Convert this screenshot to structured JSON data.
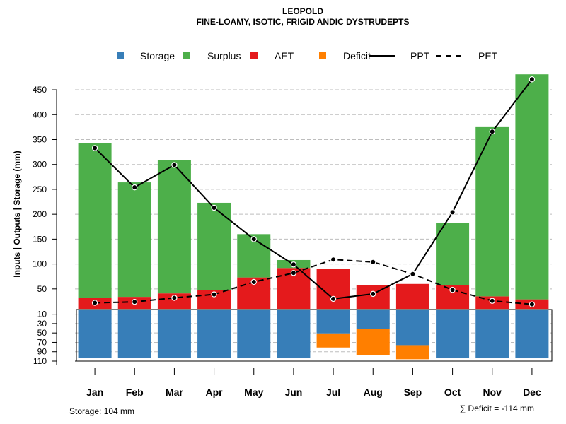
{
  "chart_data": {
    "type": "bar",
    "title": "LEOPOLD",
    "subtitle": "FINE-LOAMY, ISOTIC, FRIGID ANDIC DYSTRUDEPTS",
    "ylabel": "Inputs | Outputs | Storage    (mm)",
    "categories": [
      "Jan",
      "Feb",
      "Mar",
      "Apr",
      "May",
      "Jun",
      "Jul",
      "Aug",
      "Sep",
      "Oct",
      "Nov",
      "Dec"
    ],
    "upper_axis": {
      "ylim": [
        10,
        480
      ],
      "ticks": [
        50,
        100,
        150,
        200,
        250,
        300,
        350,
        400,
        450
      ]
    },
    "lower_axis": {
      "ylim": [
        0,
        110
      ],
      "ticks": [
        10,
        30,
        50,
        70,
        90,
        110
      ],
      "inverted": true
    },
    "series": [
      {
        "name": "AET",
        "color": "#e41a1c",
        "values": [
          22,
          24,
          31,
          37,
          63,
          82,
          80,
          48,
          50,
          47,
          25,
          19
        ]
      },
      {
        "name": "Surplus",
        "color": "#4daf4a",
        "values": [
          311,
          230,
          268,
          176,
          87,
          16,
          0,
          0,
          0,
          126,
          340,
          452
        ]
      },
      {
        "name": "Storage",
        "color": "#377eb8",
        "values": [
          104,
          104,
          104,
          104,
          104,
          104,
          51,
          42,
          76,
          104,
          104,
          104
        ]
      },
      {
        "name": "Deficit",
        "color": "#ff7f00",
        "values": [
          0,
          0,
          0,
          0,
          0,
          0,
          30,
          55,
          30,
          0,
          0,
          0
        ]
      },
      {
        "name": "PPT",
        "line_style": "solid",
        "values": [
          333,
          254,
          299,
          213,
          150,
          99,
          30,
          40,
          80,
          204,
          366,
          471
        ]
      },
      {
        "name": "PET",
        "line_style": "dashed",
        "values": [
          22,
          24,
          32,
          39,
          64,
          82,
          109,
          104,
          80,
          48,
          26,
          19
        ]
      }
    ],
    "legend": {
      "position": "top",
      "items": [
        {
          "label": "Storage",
          "color": "#377eb8",
          "kind": "box"
        },
        {
          "label": "Surplus",
          "color": "#4daf4a",
          "kind": "box"
        },
        {
          "label": "AET",
          "color": "#e41a1c",
          "kind": "box"
        },
        {
          "label": "Deficit",
          "color": "#ff7f00",
          "kind": "box"
        },
        {
          "label": "PPT",
          "color": "#000000",
          "kind": "solid"
        },
        {
          "label": "PET",
          "color": "#000000",
          "kind": "dashed"
        }
      ]
    },
    "storage_note": "Storage: 104 mm",
    "deficit_note": "∑ Deficit = -114 mm",
    "grid": true
  }
}
